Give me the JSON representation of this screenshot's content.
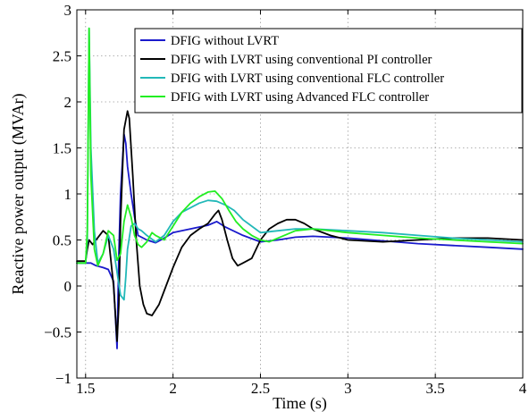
{
  "chart_data": {
    "type": "line",
    "xlabel": "Time (s)",
    "ylabel": "Reactive power output (MVAr)",
    "xlim": [
      1.45,
      4.0
    ],
    "ylim": [
      -1,
      3
    ],
    "xticks": [
      1.5,
      2,
      2.5,
      3,
      3.5,
      4
    ],
    "xtick_labels": [
      "1.5",
      "2",
      "2.5",
      "3",
      "3.5",
      "4"
    ],
    "yticks": [
      -1,
      -0.5,
      0,
      0.5,
      1,
      1.5,
      2,
      2.5,
      3
    ],
    "ytick_labels": [
      "−1",
      "−0.5",
      "0",
      "0.5",
      "1",
      "1.5",
      "2",
      "2.5",
      "3"
    ],
    "grid": true,
    "legend_position": "top-right",
    "series": [
      {
        "name": "DFIG without LVRT",
        "color": "#1a1acc",
        "x": [
          1.45,
          1.5,
          1.52,
          1.53,
          1.56,
          1.6,
          1.63,
          1.66,
          1.68,
          1.69,
          1.7,
          1.72,
          1.73,
          1.74,
          1.76,
          1.78,
          1.8,
          1.85,
          1.9,
          1.95,
          2.0,
          2.1,
          2.2,
          2.25,
          2.3,
          2.4,
          2.5,
          2.6,
          2.7,
          2.8,
          3.0,
          3.2,
          3.4,
          3.6,
          3.8,
          4.0
        ],
        "y": [
          0.25,
          0.25,
          0.25,
          0.25,
          0.22,
          0.2,
          0.18,
          0.05,
          -0.68,
          0.35,
          1.0,
          1.65,
          1.55,
          1.3,
          1.0,
          0.75,
          0.55,
          0.5,
          0.47,
          0.52,
          0.58,
          0.62,
          0.66,
          0.7,
          0.64,
          0.55,
          0.48,
          0.5,
          0.53,
          0.54,
          0.52,
          0.49,
          0.46,
          0.44,
          0.42,
          0.4
        ]
      },
      {
        "name": "DFIG with LVRT using conventional PI controller",
        "color": "#000000",
        "x": [
          1.45,
          1.5,
          1.51,
          1.52,
          1.54,
          1.56,
          1.58,
          1.6,
          1.63,
          1.66,
          1.68,
          1.69,
          1.7,
          1.72,
          1.74,
          1.75,
          1.77,
          1.79,
          1.81,
          1.83,
          1.85,
          1.88,
          1.92,
          1.96,
          2.0,
          2.05,
          2.1,
          2.15,
          2.2,
          2.24,
          2.26,
          2.28,
          2.31,
          2.34,
          2.37,
          2.4,
          2.45,
          2.5,
          2.55,
          2.6,
          2.65,
          2.7,
          2.75,
          2.8,
          2.9,
          3.0,
          3.2,
          3.4,
          3.6,
          3.8,
          4.0
        ],
        "y": [
          0.27,
          0.27,
          0.4,
          0.5,
          0.45,
          0.5,
          0.55,
          0.6,
          0.55,
          0.0,
          -0.6,
          -0.2,
          0.7,
          1.7,
          1.9,
          1.82,
          1.2,
          0.5,
          0.0,
          -0.2,
          -0.3,
          -0.32,
          -0.2,
          0.0,
          0.2,
          0.42,
          0.55,
          0.62,
          0.68,
          0.78,
          0.82,
          0.72,
          0.5,
          0.3,
          0.22,
          0.25,
          0.3,
          0.5,
          0.62,
          0.68,
          0.72,
          0.72,
          0.68,
          0.62,
          0.55,
          0.5,
          0.48,
          0.5,
          0.52,
          0.52,
          0.5
        ]
      },
      {
        "name": "DFIG with LVRT using conventional FLC controller",
        "color": "#22b8b8",
        "x": [
          1.45,
          1.5,
          1.51,
          1.52,
          1.53,
          1.55,
          1.57,
          1.6,
          1.63,
          1.66,
          1.68,
          1.7,
          1.72,
          1.73,
          1.74,
          1.76,
          1.78,
          1.8,
          1.82,
          1.85,
          1.9,
          1.95,
          2.0,
          2.05,
          2.1,
          2.15,
          2.2,
          2.25,
          2.3,
          2.35,
          2.4,
          2.5,
          2.6,
          2.7,
          2.8,
          3.0,
          3.2,
          3.4,
          3.6,
          3.8,
          4.0
        ],
        "y": [
          0.25,
          0.25,
          0.5,
          2.8,
          1.5,
          0.6,
          0.25,
          0.35,
          0.55,
          0.4,
          0.15,
          -0.1,
          -0.15,
          0.1,
          0.4,
          0.65,
          0.68,
          0.62,
          0.6,
          0.55,
          0.48,
          0.55,
          0.7,
          0.8,
          0.85,
          0.9,
          0.93,
          0.92,
          0.88,
          0.82,
          0.72,
          0.58,
          0.6,
          0.62,
          0.62,
          0.6,
          0.58,
          0.55,
          0.52,
          0.5,
          0.48
        ]
      },
      {
        "name": "DFIG with LVRT using Advanced FLC controller",
        "color": "#22ee22",
        "x": [
          1.45,
          1.5,
          1.51,
          1.52,
          1.53,
          1.55,
          1.57,
          1.6,
          1.63,
          1.66,
          1.68,
          1.7,
          1.72,
          1.74,
          1.76,
          1.78,
          1.8,
          1.82,
          1.85,
          1.88,
          1.9,
          1.95,
          2.0,
          2.05,
          2.1,
          2.15,
          2.2,
          2.24,
          2.28,
          2.32,
          2.36,
          2.4,
          2.45,
          2.5,
          2.55,
          2.6,
          2.7,
          2.8,
          3.0,
          3.2,
          3.4,
          3.6,
          3.8,
          4.0
        ],
        "y": [
          0.25,
          0.25,
          0.6,
          2.8,
          1.2,
          0.4,
          0.22,
          0.35,
          0.6,
          0.55,
          0.28,
          0.35,
          0.7,
          0.88,
          0.75,
          0.55,
          0.45,
          0.42,
          0.48,
          0.58,
          0.55,
          0.5,
          0.65,
          0.8,
          0.9,
          0.97,
          1.02,
          1.03,
          0.95,
          0.82,
          0.7,
          0.62,
          0.55,
          0.5,
          0.48,
          0.52,
          0.6,
          0.62,
          0.58,
          0.55,
          0.52,
          0.5,
          0.48,
          0.46
        ]
      }
    ]
  }
}
